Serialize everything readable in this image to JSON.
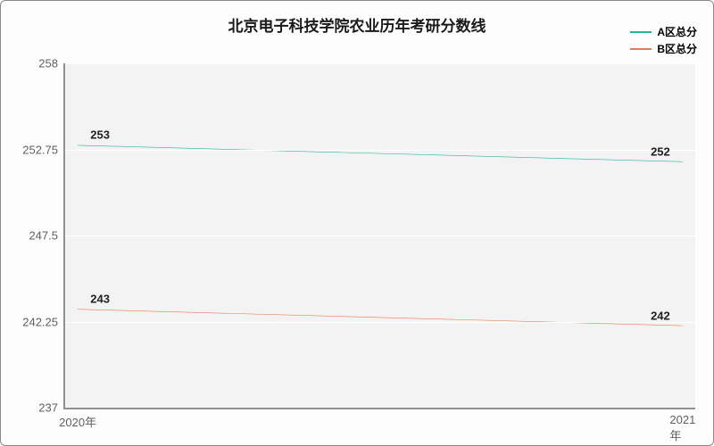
{
  "chart": {
    "type": "line",
    "title": "北京电子科技学院农业历年考研分数线",
    "title_fontsize": 17,
    "title_color": "#1a1a1a",
    "background_color": "#fdfdfd",
    "border_color": "#888888",
    "plot_background": "#f3f3f3",
    "grid_color": "#ffffff",
    "axis_color": "#909090",
    "tick_color": "#606060",
    "tick_fontsize": 13,
    "label_fontsize": 13,
    "label_color": "#202020",
    "legend": {
      "position": "top-right",
      "fontsize": 12,
      "items": [
        {
          "label": "A区总分",
          "color": "#2bb39a"
        },
        {
          "label": "B区总分",
          "color": "#e87b4c"
        }
      ]
    },
    "x": {
      "categories": [
        "2020年",
        "2021年"
      ],
      "positions_pct": [
        2,
        98
      ]
    },
    "y": {
      "min": 237,
      "max": 258,
      "ticks": [
        237,
        242.25,
        247.5,
        252.75,
        258
      ]
    },
    "series": [
      {
        "name": "A区总分",
        "color": "#2bb39a",
        "line_width": 2,
        "values": [
          253,
          252
        ],
        "label_positions": [
          "left",
          "right"
        ]
      },
      {
        "name": "B区总分",
        "color": "#e87b4c",
        "line_width": 2,
        "values": [
          243,
          242
        ],
        "label_positions": [
          "left",
          "right"
        ]
      }
    ]
  }
}
